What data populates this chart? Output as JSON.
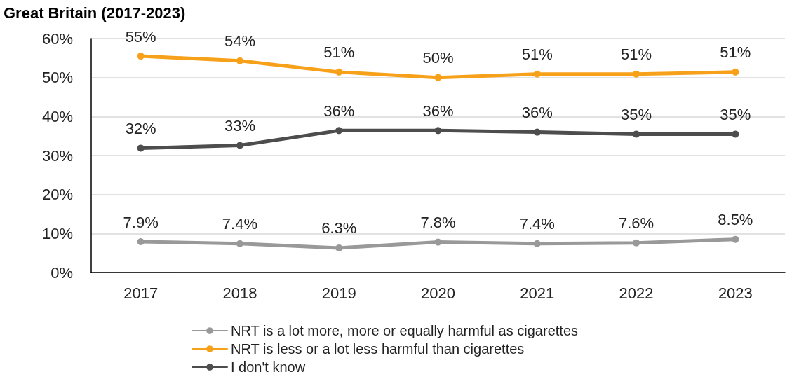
{
  "chart_data": {
    "type": "line",
    "title": "Great Britain (2017-2023)",
    "categories": [
      "2017",
      "2018",
      "2019",
      "2020",
      "2021",
      "2022",
      "2023"
    ],
    "series": [
      {
        "name": "NRT is a lot more, more or equally harmful as cigarettes",
        "color": "#999999",
        "values": [
          7.9,
          7.4,
          6.3,
          7.8,
          7.4,
          7.6,
          8.5
        ],
        "value_labels": [
          "7.9%",
          "7.4%",
          "6.3%",
          "7.8%",
          "7.4%",
          "7.6%",
          "8.5%"
        ]
      },
      {
        "name": "NRT is less or a lot less harmful than cigarettes",
        "color": "#f7a11a",
        "values": [
          55.5,
          54.3,
          51.4,
          50.0,
          50.9,
          50.9,
          51.4
        ],
        "value_labels": [
          "55%",
          "54%",
          "51%",
          "50%",
          "51%",
          "51%",
          "51%"
        ]
      },
      {
        "name": "I don't know",
        "color": "#4d4d4d",
        "values": [
          31.9,
          32.6,
          36.4,
          36.4,
          36.0,
          35.5,
          35.5
        ],
        "value_labels": [
          "32%",
          "33%",
          "36%",
          "36%",
          "36%",
          "35%",
          "35%"
        ]
      }
    ],
    "ylim": [
      0,
      60
    ],
    "yticks": [
      {
        "value": 0,
        "label": "0%"
      },
      {
        "value": 10,
        "label": "10%"
      },
      {
        "value": 20,
        "label": "20%"
      },
      {
        "value": 30,
        "label": "30%"
      },
      {
        "value": 40,
        "label": "40%"
      },
      {
        "value": 50,
        "label": "50%"
      },
      {
        "value": 60,
        "label": "60%"
      }
    ],
    "grid": "y",
    "legend": "bottom",
    "marker": "circle",
    "line_style": "solid"
  }
}
